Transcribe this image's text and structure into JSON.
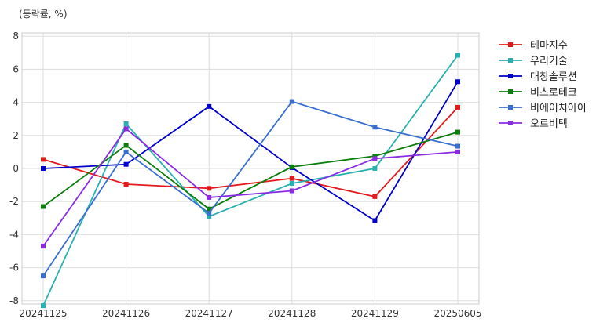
{
  "chart_data": {
    "type": "line",
    "unit_label": "(등락률, %)",
    "categories": [
      "20241125",
      "20241126",
      "20241127",
      "20241128",
      "20241129",
      "20250605"
    ],
    "ylim": [
      -8.2,
      8.2
    ],
    "yticks": [
      -8,
      -6,
      -4,
      -2,
      0,
      2,
      4,
      6,
      8
    ],
    "grid": true,
    "legend_position": "right",
    "series": [
      {
        "name": "테마지수",
        "color": "#e31a1c",
        "values": [
          0.55,
          -0.95,
          -1.2,
          -0.6,
          -1.7,
          3.7
        ]
      },
      {
        "name": "우리기술",
        "color": "#2ab0b0",
        "values": [
          -8.3,
          2.7,
          -2.9,
          -0.9,
          0.0,
          6.85
        ]
      },
      {
        "name": "대창솔루션",
        "color": "#0000cc",
        "values": [
          0.0,
          0.25,
          3.75,
          0.05,
          -3.15,
          5.25
        ]
      },
      {
        "name": "비츠로테크",
        "color": "#0a7d0a",
        "values": [
          -2.3,
          1.4,
          -2.45,
          0.1,
          0.75,
          2.2
        ]
      },
      {
        "name": "비에이치아이",
        "color": "#3a6fd0",
        "values": [
          -6.5,
          1.0,
          -2.7,
          4.05,
          2.5,
          1.35
        ]
      },
      {
        "name": "오르비텍",
        "color": "#8a2be2",
        "values": [
          -4.7,
          2.4,
          -1.75,
          -1.35,
          0.6,
          1.0
        ]
      }
    ]
  }
}
